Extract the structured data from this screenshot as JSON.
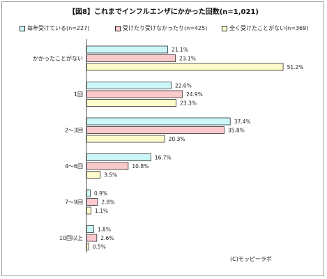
{
  "chart_data": {
    "type": "bar",
    "orientation": "horizontal",
    "title": "【図8】これまでインフルエンザにかかった回数(n=1,021)",
    "categories": [
      "かかったことがない",
      "1回",
      "2～3回",
      "4～6回",
      "7～9回",
      "10回以上"
    ],
    "series": [
      {
        "name": "毎年受けている(n=227)",
        "values": [
          21.1,
          22.0,
          37.4,
          16.7,
          0.9,
          1.8
        ]
      },
      {
        "name": "受けたり受けなかったり(n=425)",
        "values": [
          23.1,
          24.9,
          35.8,
          10.8,
          2.8,
          2.6
        ]
      },
      {
        "name": "全く受けたことがない(n=369)",
        "values": [
          51.2,
          23.3,
          20.3,
          3.5,
          1.1,
          0.5
        ]
      }
    ],
    "value_suffix": "%",
    "xlim": [
      0,
      60
    ],
    "legend": "top",
    "grid": false,
    "colors": [
      "#ccf7f9",
      "#f9c9cb",
      "#fdfbc9"
    ],
    "border_color": "#333333"
  },
  "credit": "(C)モッピーラボ"
}
